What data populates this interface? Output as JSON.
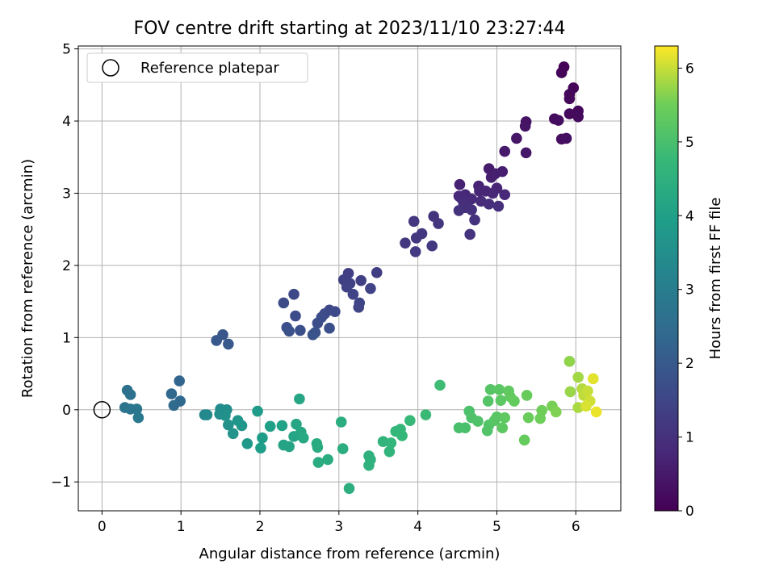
{
  "chart_data": {
    "type": "scatter",
    "title": "FOV centre drift starting at 2023/11/10 23:27:44",
    "xlabel": "Angular distance from reference (arcmin)",
    "ylabel": "Rotation from reference (arcmin)",
    "xlim": [
      -0.3,
      6.57
    ],
    "ylim": [
      -1.4,
      5.04
    ],
    "xticks": [
      0,
      1,
      2,
      3,
      4,
      5,
      6
    ],
    "yticks": [
      -1,
      0,
      1,
      2,
      3,
      4,
      5
    ],
    "grid": true,
    "legend": {
      "location": "top-left",
      "entries": [
        "Reference platepar"
      ]
    },
    "reference_point": {
      "x": 0,
      "y": 0
    },
    "colorbar": {
      "label": "Hours from first FF file",
      "colormap": "viridis",
      "range": [
        0,
        6.3
      ],
      "ticks": [
        0,
        1,
        2,
        3,
        4,
        5,
        6
      ]
    },
    "points": [
      {
        "x": 5.85,
        "y": 4.75,
        "h": 0.05
      },
      {
        "x": 5.82,
        "y": 4.67,
        "h": 0.08
      },
      {
        "x": 5.97,
        "y": 4.46,
        "h": 0.1
      },
      {
        "x": 5.92,
        "y": 4.37,
        "h": 0.12
      },
      {
        "x": 5.92,
        "y": 4.31,
        "h": 0.14
      },
      {
        "x": 6.03,
        "y": 4.14,
        "h": 0.16
      },
      {
        "x": 5.92,
        "y": 4.1,
        "h": 0.18
      },
      {
        "x": 6.03,
        "y": 4.06,
        "h": 0.2
      },
      {
        "x": 5.73,
        "y": 4.03,
        "h": 0.22
      },
      {
        "x": 5.78,
        "y": 4.01,
        "h": 0.24
      },
      {
        "x": 5.82,
        "y": 3.75,
        "h": 0.26
      },
      {
        "x": 5.88,
        "y": 3.76,
        "h": 0.28
      },
      {
        "x": 5.37,
        "y": 3.99,
        "h": 0.35
      },
      {
        "x": 5.36,
        "y": 3.93,
        "h": 0.38
      },
      {
        "x": 5.25,
        "y": 3.76,
        "h": 0.42
      },
      {
        "x": 5.37,
        "y": 3.56,
        "h": 0.45
      },
      {
        "x": 5.1,
        "y": 3.58,
        "h": 0.48
      },
      {
        "x": 4.9,
        "y": 3.34,
        "h": 0.55
      },
      {
        "x": 5.07,
        "y": 3.3,
        "h": 0.58
      },
      {
        "x": 4.98,
        "y": 3.27,
        "h": 0.6
      },
      {
        "x": 4.93,
        "y": 3.22,
        "h": 0.62
      },
      {
        "x": 4.53,
        "y": 3.12,
        "h": 0.65
      },
      {
        "x": 4.77,
        "y": 3.1,
        "h": 0.68
      },
      {
        "x": 5.0,
        "y": 3.07,
        "h": 0.7
      },
      {
        "x": 4.86,
        "y": 3.03,
        "h": 0.72
      },
      {
        "x": 4.78,
        "y": 3.03,
        "h": 0.74
      },
      {
        "x": 4.95,
        "y": 3.0,
        "h": 0.76
      },
      {
        "x": 5.1,
        "y": 2.98,
        "h": 0.78
      },
      {
        "x": 4.6,
        "y": 2.98,
        "h": 0.8
      },
      {
        "x": 4.52,
        "y": 2.96,
        "h": 0.82
      },
      {
        "x": 4.55,
        "y": 2.93,
        "h": 0.84
      },
      {
        "x": 4.68,
        "y": 2.92,
        "h": 0.86
      },
      {
        "x": 4.62,
        "y": 2.88,
        "h": 0.88
      },
      {
        "x": 4.8,
        "y": 2.89,
        "h": 0.9
      },
      {
        "x": 4.58,
        "y": 2.86,
        "h": 0.92
      },
      {
        "x": 4.9,
        "y": 2.85,
        "h": 0.94
      },
      {
        "x": 5.02,
        "y": 2.82,
        "h": 0.96
      },
      {
        "x": 4.6,
        "y": 2.8,
        "h": 0.98
      },
      {
        "x": 4.68,
        "y": 2.77,
        "h": 1.0
      },
      {
        "x": 4.52,
        "y": 2.76,
        "h": 1.02
      },
      {
        "x": 4.72,
        "y": 2.63,
        "h": 1.04
      },
      {
        "x": 4.66,
        "y": 2.43,
        "h": 1.06
      },
      {
        "x": 4.2,
        "y": 2.68,
        "h": 1.08
      },
      {
        "x": 4.26,
        "y": 2.58,
        "h": 1.1
      },
      {
        "x": 3.95,
        "y": 2.61,
        "h": 1.12
      },
      {
        "x": 4.05,
        "y": 2.44,
        "h": 1.14
      },
      {
        "x": 3.98,
        "y": 2.38,
        "h": 1.16
      },
      {
        "x": 3.84,
        "y": 2.31,
        "h": 1.18
      },
      {
        "x": 4.18,
        "y": 2.27,
        "h": 1.2
      },
      {
        "x": 3.97,
        "y": 2.19,
        "h": 1.22
      },
      {
        "x": 3.48,
        "y": 1.9,
        "h": 1.3
      },
      {
        "x": 3.12,
        "y": 1.89,
        "h": 1.32
      },
      {
        "x": 3.06,
        "y": 1.8,
        "h": 1.34
      },
      {
        "x": 3.28,
        "y": 1.79,
        "h": 1.36
      },
      {
        "x": 3.14,
        "y": 1.75,
        "h": 1.38
      },
      {
        "x": 3.1,
        "y": 1.7,
        "h": 1.4
      },
      {
        "x": 3.4,
        "y": 1.68,
        "h": 1.42
      },
      {
        "x": 3.18,
        "y": 1.6,
        "h": 1.44
      },
      {
        "x": 3.26,
        "y": 1.48,
        "h": 1.46
      },
      {
        "x": 3.25,
        "y": 1.42,
        "h": 1.48
      },
      {
        "x": 2.43,
        "y": 1.6,
        "h": 1.55
      },
      {
        "x": 2.88,
        "y": 1.38,
        "h": 1.58
      },
      {
        "x": 2.95,
        "y": 1.36,
        "h": 1.6
      },
      {
        "x": 2.82,
        "y": 1.33,
        "h": 1.62
      },
      {
        "x": 2.3,
        "y": 1.48,
        "h": 1.64
      },
      {
        "x": 2.45,
        "y": 1.3,
        "h": 1.66
      },
      {
        "x": 2.78,
        "y": 1.28,
        "h": 1.68
      },
      {
        "x": 2.73,
        "y": 1.2,
        "h": 1.7
      },
      {
        "x": 2.34,
        "y": 1.14,
        "h": 1.72
      },
      {
        "x": 2.88,
        "y": 1.13,
        "h": 1.74
      },
      {
        "x": 2.51,
        "y": 1.1,
        "h": 1.76
      },
      {
        "x": 2.37,
        "y": 1.09,
        "h": 1.78
      },
      {
        "x": 2.7,
        "y": 1.07,
        "h": 1.8
      },
      {
        "x": 2.67,
        "y": 1.04,
        "h": 1.82
      },
      {
        "x": 1.53,
        "y": 1.04,
        "h": 1.9
      },
      {
        "x": 1.45,
        "y": 0.96,
        "h": 1.94
      },
      {
        "x": 1.6,
        "y": 0.91,
        "h": 1.98
      },
      {
        "x": 0.98,
        "y": 0.4,
        "h": 2.3
      },
      {
        "x": 0.88,
        "y": 0.22,
        "h": 2.35
      },
      {
        "x": 0.99,
        "y": 0.12,
        "h": 2.4
      },
      {
        "x": 0.91,
        "y": 0.06,
        "h": 2.45
      },
      {
        "x": 0.32,
        "y": 0.27,
        "h": 2.6
      },
      {
        "x": 0.36,
        "y": 0.21,
        "h": 2.65
      },
      {
        "x": 0.29,
        "y": 0.03,
        "h": 2.7
      },
      {
        "x": 0.36,
        "y": 0.01,
        "h": 2.75
      },
      {
        "x": 0.44,
        "y": 0.01,
        "h": 2.8
      },
      {
        "x": 0.46,
        "y": -0.11,
        "h": 2.85
      },
      {
        "x": 1.3,
        "y": -0.07,
        "h": 3.3
      },
      {
        "x": 1.33,
        "y": -0.07,
        "h": 3.35
      },
      {
        "x": 1.5,
        "y": 0.01,
        "h": 3.4
      },
      {
        "x": 1.58,
        "y": 0.0,
        "h": 3.45
      },
      {
        "x": 1.49,
        "y": -0.06,
        "h": 3.5
      },
      {
        "x": 1.56,
        "y": -0.08,
        "h": 3.55
      },
      {
        "x": 1.6,
        "y": -0.21,
        "h": 3.6
      },
      {
        "x": 1.66,
        "y": -0.33,
        "h": 3.65
      },
      {
        "x": 1.72,
        "y": -0.15,
        "h": 3.7
      },
      {
        "x": 1.77,
        "y": -0.22,
        "h": 3.75
      },
      {
        "x": 1.84,
        "y": -0.47,
        "h": 3.8
      },
      {
        "x": 1.97,
        "y": -0.02,
        "h": 3.85
      },
      {
        "x": 2.03,
        "y": -0.39,
        "h": 3.9
      },
      {
        "x": 2.01,
        "y": -0.53,
        "h": 3.95
      },
      {
        "x": 2.13,
        "y": -0.23,
        "h": 4.0
      },
      {
        "x": 2.28,
        "y": -0.22,
        "h": 4.05
      },
      {
        "x": 2.3,
        "y": -0.49,
        "h": 4.1
      },
      {
        "x": 2.37,
        "y": -0.51,
        "h": 4.12
      },
      {
        "x": 2.43,
        "y": -0.37,
        "h": 4.15
      },
      {
        "x": 2.46,
        "y": -0.2,
        "h": 4.18
      },
      {
        "x": 2.5,
        "y": 0.15,
        "h": 4.2
      },
      {
        "x": 2.52,
        "y": -0.31,
        "h": 4.22
      },
      {
        "x": 2.55,
        "y": -0.39,
        "h": 4.25
      },
      {
        "x": 2.72,
        "y": -0.47,
        "h": 4.3
      },
      {
        "x": 2.73,
        "y": -0.52,
        "h": 4.32
      },
      {
        "x": 2.74,
        "y": -0.73,
        "h": 4.35
      },
      {
        "x": 2.86,
        "y": -0.69,
        "h": 4.38
      },
      {
        "x": 3.03,
        "y": -0.17,
        "h": 4.4
      },
      {
        "x": 3.05,
        "y": -0.54,
        "h": 4.42
      },
      {
        "x": 3.13,
        "y": -1.09,
        "h": 4.45
      },
      {
        "x": 3.38,
        "y": -0.64,
        "h": 4.5
      },
      {
        "x": 3.4,
        "y": -0.69,
        "h": 4.52
      },
      {
        "x": 3.38,
        "y": -0.77,
        "h": 4.55
      },
      {
        "x": 3.56,
        "y": -0.44,
        "h": 4.6
      },
      {
        "x": 3.64,
        "y": -0.58,
        "h": 4.62
      },
      {
        "x": 3.66,
        "y": -0.46,
        "h": 4.65
      },
      {
        "x": 3.72,
        "y": -0.3,
        "h": 4.68
      },
      {
        "x": 3.78,
        "y": -0.27,
        "h": 4.7
      },
      {
        "x": 3.8,
        "y": -0.36,
        "h": 4.72
      },
      {
        "x": 3.9,
        "y": -0.15,
        "h": 4.75
      },
      {
        "x": 4.1,
        "y": -0.07,
        "h": 4.8
      },
      {
        "x": 4.28,
        "y": 0.34,
        "h": 4.85
      },
      {
        "x": 4.52,
        "y": -0.25,
        "h": 5.0
      },
      {
        "x": 4.6,
        "y": -0.25,
        "h": 5.02
      },
      {
        "x": 4.65,
        "y": -0.02,
        "h": 5.05
      },
      {
        "x": 4.68,
        "y": -0.11,
        "h": 5.08
      },
      {
        "x": 4.76,
        "y": -0.16,
        "h": 5.1
      },
      {
        "x": 4.88,
        "y": -0.29,
        "h": 5.12
      },
      {
        "x": 4.9,
        "y": -0.21,
        "h": 5.14
      },
      {
        "x": 4.89,
        "y": 0.12,
        "h": 5.16
      },
      {
        "x": 4.92,
        "y": 0.28,
        "h": 5.18
      },
      {
        "x": 4.97,
        "y": -0.15,
        "h": 5.2
      },
      {
        "x": 5.0,
        "y": -0.1,
        "h": 5.22
      },
      {
        "x": 5.03,
        "y": 0.28,
        "h": 5.24
      },
      {
        "x": 5.05,
        "y": 0.13,
        "h": 5.26
      },
      {
        "x": 5.07,
        "y": -0.25,
        "h": 5.28
      },
      {
        "x": 5.1,
        "y": -0.11,
        "h": 5.3
      },
      {
        "x": 5.15,
        "y": 0.26,
        "h": 5.32
      },
      {
        "x": 5.17,
        "y": 0.18,
        "h": 5.34
      },
      {
        "x": 5.22,
        "y": 0.12,
        "h": 5.36
      },
      {
        "x": 5.35,
        "y": -0.42,
        "h": 5.4
      },
      {
        "x": 5.38,
        "y": 0.2,
        "h": 5.42
      },
      {
        "x": 5.4,
        "y": -0.11,
        "h": 5.44
      },
      {
        "x": 5.55,
        "y": -0.12,
        "h": 5.5
      },
      {
        "x": 5.57,
        "y": -0.01,
        "h": 5.52
      },
      {
        "x": 5.7,
        "y": 0.05,
        "h": 5.56
      },
      {
        "x": 5.75,
        "y": -0.03,
        "h": 5.6
      },
      {
        "x": 5.92,
        "y": 0.67,
        "h": 5.7
      },
      {
        "x": 5.93,
        "y": 0.25,
        "h": 5.75
      },
      {
        "x": 6.03,
        "y": 0.45,
        "h": 5.8
      },
      {
        "x": 6.03,
        "y": 0.03,
        "h": 5.85
      },
      {
        "x": 6.08,
        "y": 0.29,
        "h": 5.9
      },
      {
        "x": 6.1,
        "y": 0.2,
        "h": 5.95
      },
      {
        "x": 6.15,
        "y": 0.26,
        "h": 6.0
      },
      {
        "x": 6.18,
        "y": 0.12,
        "h": 6.05
      },
      {
        "x": 6.13,
        "y": 0.05,
        "h": 6.1
      },
      {
        "x": 6.22,
        "y": 0.43,
        "h": 6.15
      },
      {
        "x": 6.26,
        "y": -0.03,
        "h": 6.2
      }
    ]
  }
}
